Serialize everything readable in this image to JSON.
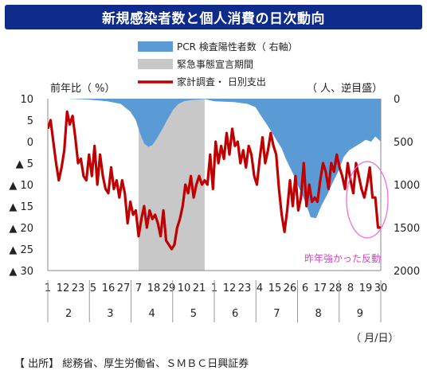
{
  "title": "新規感染者数と個人消費の日次動向",
  "source": "【 出所】 総務省、厚生労働省、ＳＭＢＣ日興証券",
  "chart_data": {
    "type": "line+area",
    "left_axis_label": "前年比（ %）",
    "right_axis_label": "（ 人、逆目盛）",
    "x_unit_label": "（ 月/日）",
    "annotation": "昨年強かった反動",
    "legend": [
      {
        "label": "PCR 検査陽性者数（ 右軸）",
        "kind": "area",
        "color": "#5b9bd5"
      },
      {
        "label": "緊急事態宣言期間",
        "kind": "band",
        "color": "#c8c8c8"
      },
      {
        "label": "家計調査・ 日別支出",
        "kind": "line",
        "color": "#c00000"
      }
    ],
    "left_axis": {
      "min": -30,
      "max": 10,
      "ticks": [
        10,
        5,
        0,
        -5,
        -10,
        -15,
        -20,
        -25,
        -30
      ],
      "tick_labels": [
        "10",
        "5",
        "0",
        "▲ 5",
        "▲ 10",
        "▲ 15",
        "▲ 20",
        "▲ 25",
        "▲ 30"
      ]
    },
    "right_axis": {
      "min": 0,
      "max": 2000,
      "inverted": true,
      "ticks": [
        0,
        500,
        1000,
        1500,
        2000
      ],
      "tick_labels": [
        "0",
        "500",
        "1000",
        "1500",
        "2000"
      ]
    },
    "x_day_labels": [
      "1",
      "12",
      "23",
      "5",
      "16",
      "27",
      "7",
      "18",
      "29",
      "10",
      "21",
      "1",
      "12",
      "23",
      "4",
      "15",
      "26",
      "6",
      "17",
      "28",
      "8",
      "19",
      "30"
    ],
    "x_month_labels": [
      "2",
      "3",
      "4",
      "5",
      "6",
      "7",
      "8",
      "9"
    ],
    "emergency_period": {
      "start": "4/7",
      "end": "5/25"
    },
    "pcr_positive": {
      "dates": [
        "2/1",
        "2/15",
        "3/1",
        "3/15",
        "3/25",
        "4/1",
        "4/5",
        "4/8",
        "4/11",
        "4/14",
        "4/17",
        "4/20",
        "4/24",
        "4/28",
        "5/2",
        "5/6",
        "5/10",
        "5/15",
        "5/20",
        "5/25",
        "6/1",
        "6/15",
        "6/25",
        "7/1",
        "7/5",
        "7/10",
        "7/15",
        "7/20",
        "7/23",
        "7/26",
        "7/29",
        "8/1",
        "8/4",
        "8/7",
        "8/10",
        "8/14",
        "8/18",
        "8/22",
        "8/26",
        "8/30",
        "9/3",
        "9/7",
        "9/11",
        "9/15",
        "9/19",
        "9/23",
        "9/26",
        "9/30"
      ],
      "values": [
        0,
        0,
        10,
        30,
        60,
        150,
        250,
        400,
        520,
        560,
        540,
        470,
        360,
        240,
        130,
        60,
        30,
        15,
        10,
        5,
        30,
        40,
        60,
        100,
        200,
        320,
        450,
        580,
        700,
        800,
        900,
        1020,
        1120,
        1240,
        1380,
        1390,
        1240,
        1120,
        980,
        850,
        680,
        600,
        560,
        520,
        480,
        500,
        440,
        500
      ]
    },
    "spending_yoy": {
      "dates": [
        "2/1",
        "2/3",
        "2/5",
        "2/7",
        "2/9",
        "2/11",
        "2/13",
        "2/15",
        "2/17",
        "2/19",
        "2/21",
        "2/23",
        "2/25",
        "2/27",
        "2/29",
        "3/2",
        "3/4",
        "3/6",
        "3/8",
        "3/10",
        "3/12",
        "3/14",
        "3/16",
        "3/18",
        "3/20",
        "3/22",
        "3/24",
        "3/26",
        "3/28",
        "3/30",
        "4/1",
        "4/3",
        "4/5",
        "4/7",
        "4/9",
        "4/11",
        "4/13",
        "4/15",
        "4/17",
        "4/19",
        "4/21",
        "4/23",
        "4/25",
        "4/27",
        "4/29",
        "5/1",
        "5/3",
        "5/5",
        "5/7",
        "5/9",
        "5/11",
        "5/13",
        "5/15",
        "5/17",
        "5/19",
        "5/21",
        "5/23",
        "5/25",
        "5/27",
        "5/29",
        "5/31",
        "6/2",
        "6/4",
        "6/6",
        "6/8",
        "6/10",
        "6/12",
        "6/14",
        "6/16",
        "6/18",
        "6/20",
        "6/22",
        "6/24",
        "6/26",
        "6/28",
        "6/30",
        "7/2",
        "7/4",
        "7/6",
        "7/8",
        "7/10",
        "7/12",
        "7/14",
        "7/16",
        "7/18",
        "7/20",
        "7/22",
        "7/24",
        "7/26",
        "7/28",
        "7/30",
        "8/1",
        "8/3",
        "8/5",
        "8/7",
        "8/9",
        "8/11",
        "8/13",
        "8/15",
        "8/17",
        "8/19",
        "8/21",
        "8/23",
        "8/25",
        "8/27",
        "8/29",
        "8/31",
        "9/2",
        "9/4",
        "9/6",
        "9/8",
        "9/10",
        "9/12",
        "9/14",
        "9/16",
        "9/18",
        "9/20",
        "9/22",
        "9/24",
        "9/26",
        "9/28",
        "9/30"
      ],
      "values": [
        3,
        5,
        0,
        -5,
        -9,
        -6,
        -2,
        7,
        4,
        6,
        1,
        -5,
        -4,
        -8,
        -9,
        -3,
        -8,
        -1,
        -10,
        -3,
        -8,
        -11,
        -12,
        -6,
        -11,
        -9,
        -13,
        -9,
        -12,
        -19,
        -14,
        -17,
        -16,
        -22,
        -18,
        -15,
        -20,
        -16,
        -18,
        -17,
        -19,
        -22,
        -16,
        -23,
        -24,
        -25,
        -24,
        -20,
        -18,
        -15,
        -10,
        -12,
        -8,
        -13,
        -10,
        -8,
        -10,
        -9,
        -10,
        -3,
        -11,
        0,
        -5,
        -1,
        -4,
        2,
        -3,
        3,
        -1,
        0,
        -5,
        -2,
        -6,
        -1,
        -3,
        -8,
        -10,
        -4,
        1,
        -5,
        -2,
        2,
        -1,
        -3,
        -11,
        -17,
        -21,
        -16,
        -9,
        -15,
        -8,
        -16,
        -13,
        -5,
        -15,
        -10,
        -14,
        -13,
        -14,
        -9,
        -5,
        -7,
        -11,
        -5,
        -7,
        -3,
        -6,
        -8,
        -11,
        -5,
        -9,
        -12,
        -5,
        -8,
        -11,
        -13,
        -10,
        -6,
        -13,
        -13,
        -20,
        -20
      ]
    }
  }
}
